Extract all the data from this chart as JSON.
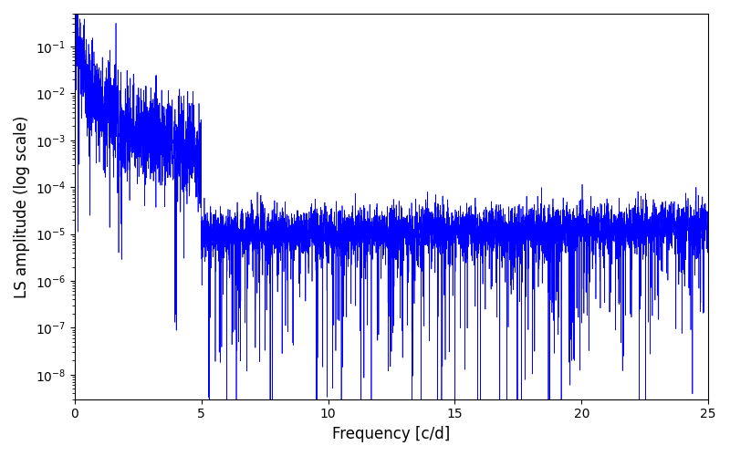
{
  "title": "",
  "xlabel": "Frequency [c/d]",
  "ylabel": "LS amplitude (log scale)",
  "line_color": "#0000ff",
  "line_width": 0.5,
  "xlim": [
    0,
    25
  ],
  "ylim": [
    3e-09,
    0.5
  ],
  "xticklabels": [
    "0",
    "5",
    "10",
    "15",
    "20",
    "25"
  ],
  "xticks": [
    0,
    5,
    10,
    15,
    20,
    25
  ],
  "figsize": [
    8.0,
    5.0
  ],
  "dpi": 100,
  "seed": 12345,
  "n_points": 6000,
  "freq_max": 25.0,
  "background_color": "#ffffff"
}
